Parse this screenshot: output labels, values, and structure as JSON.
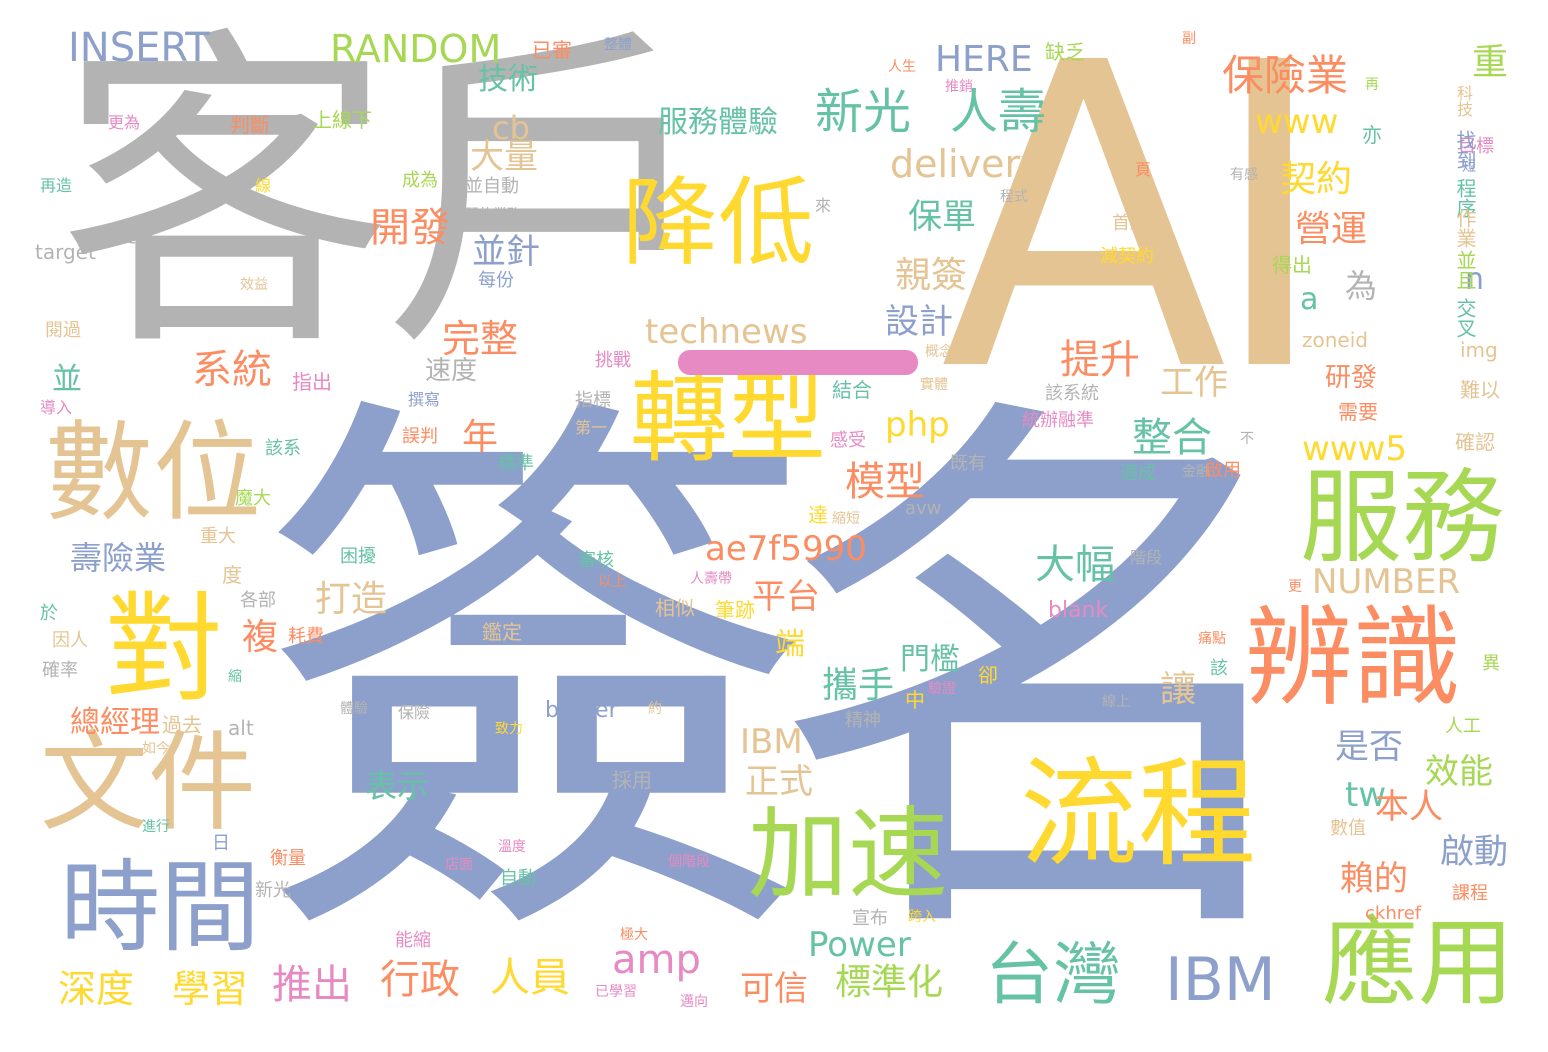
{
  "palette": {
    "gray": "#b3b3b3",
    "tan": "#e5c494",
    "blue": "#8da0cb",
    "yellow": "#ffd92f",
    "green": "#a6d854",
    "orange": "#fc8d62",
    "pink": "#e78ac3",
    "teal": "#66c2a5"
  },
  "words": [
    "客戶",
    "AI",
    "簽名",
    "降低",
    "轉型",
    "數位",
    "文件",
    "對",
    "時間",
    "流程",
    "加速",
    "服務",
    "辨識",
    "應用",
    "台灣",
    "IBM",
    "INSERT",
    "RANDOM",
    "HERE",
    "新光",
    "人壽",
    "保險業",
    "重",
    "服務體驗",
    "技術",
    "delivery",
    "開發",
    "保單",
    "契約",
    "營運",
    "系統",
    "親簽",
    "設計",
    "technews",
    "完整",
    "提升",
    "工作",
    "年",
    "php",
    "整合",
    "www5",
    "模型",
    "ae7f5990",
    "大幅",
    "NUMBER",
    "打造",
    "平台",
    "複",
    "端",
    "壽險業",
    "攜手",
    "讓",
    "IBM",
    "正式",
    "是否",
    "效能",
    "tw",
    "本人",
    "啟動",
    "賴的",
    "amp",
    "可信",
    "Power",
    "標準化",
    "深度",
    "學習",
    "推出",
    "行政",
    "人員",
    "表示",
    "總經理",
    "門檻",
    "border",
    "blank",
    "cb",
    "大量",
    "並針",
    "www",
    "為",
    "n",
    "a",
    "速度",
    "並",
    "研發",
    "目標",
    "找到",
    "程序",
    "並且",
    "作業",
    "交叉",
    "img",
    "zoneid",
    "難以",
    "確認",
    "科技",
    "target",
    "更會",
    "再造",
    "更為",
    "判斷",
    "上線下",
    "已審",
    "整體",
    "副",
    "缺乏",
    "人生",
    "推銷",
    "再",
    "亦",
    "短",
    "有感",
    "得出",
    "需要",
    "成為",
    "並自動",
    "門的業務",
    "每份",
    "效益",
    "閱過",
    "導入",
    "指出",
    "挑戰",
    "概念",
    "結合",
    "實體",
    "感受",
    "不",
    "既有",
    "達",
    "縮短",
    "困擾",
    "重大",
    "魔大",
    "該系",
    "度",
    "各部",
    "於",
    "因人",
    "確率",
    "縮",
    "耗費",
    "審核",
    "以上",
    "相似",
    "人壽帶",
    "筆跡",
    "階段",
    "鑑定",
    "中",
    "驗證",
    "卻",
    "體驗",
    "保險",
    "約",
    "過去",
    "如今",
    "alt",
    "精神",
    "致力",
    "線上",
    "人工",
    "異",
    "痛點",
    "該",
    "採用",
    "進行",
    "日",
    "店面",
    "溫度",
    "自動",
    "個階段",
    "新光",
    "衡量",
    "能縮",
    "極大",
    "已學習",
    "邁向",
    "宣布",
    "跨入",
    "ckhref",
    "課程",
    "數值",
    "更",
    "avw",
    "金融",
    "啟用",
    "適成",
    "src",
    "標準",
    "誤判",
    "第一",
    "指標",
    "撰寫",
    "該系統",
    "統辦融準",
    "首創",
    "減契約",
    "來",
    "程式",
    "頁",
    "線"
  ]
}
